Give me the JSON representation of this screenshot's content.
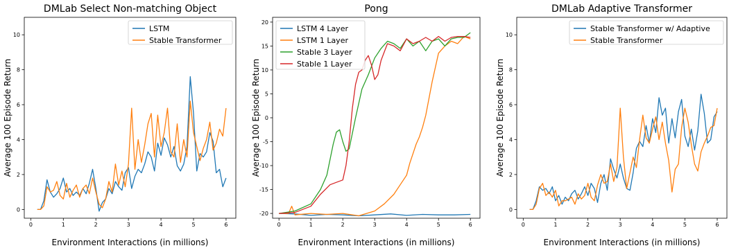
{
  "chart_data": [
    {
      "type": "line",
      "title": "DMLab Select Non-matching Object",
      "xlabel": "Environment Interactions (in millions)",
      "ylabel": "Average 100 Episode Return",
      "xlim": [
        -0.2,
        6.3
      ],
      "ylim": [
        -0.5,
        11
      ],
      "xticks": [
        0,
        1,
        2,
        3,
        4,
        5,
        6
      ],
      "yticks": [
        0,
        2,
        4,
        6,
        8,
        10
      ],
      "legend_position": "top-right",
      "grid": false,
      "series": [
        {
          "name": "LSTM",
          "color": "#1f77b4",
          "x": [
            0.2,
            0.3,
            0.4,
            0.5,
            0.6,
            0.7,
            0.8,
            0.9,
            1.0,
            1.1,
            1.2,
            1.3,
            1.4,
            1.5,
            1.6,
            1.7,
            1.8,
            1.9,
            2.0,
            2.1,
            2.2,
            2.3,
            2.4,
            2.5,
            2.6,
            2.7,
            2.8,
            2.9,
            3.0,
            3.1,
            3.2,
            3.3,
            3.4,
            3.5,
            3.6,
            3.7,
            3.8,
            3.9,
            4.0,
            4.1,
            4.2,
            4.3,
            4.4,
            4.5,
            4.6,
            4.7,
            4.8,
            4.9,
            5.0,
            5.1,
            5.2,
            5.3,
            5.4,
            5.5,
            5.6,
            5.7,
            5.8,
            5.9,
            6.0
          ],
          "y": [
            0,
            0,
            0.5,
            1.7,
            1.0,
            0.7,
            0.9,
            1.2,
            1.8,
            1.0,
            1.2,
            0.8,
            1.0,
            0.8,
            1.2,
            0.9,
            1.5,
            2.3,
            1.2,
            -0.1,
            0.4,
            0.6,
            1.2,
            0.9,
            1.6,
            1.3,
            1.1,
            2.1,
            2.4,
            1.2,
            1.9,
            2.3,
            2.1,
            2.6,
            3.3,
            3.0,
            2.2,
            3.8,
            3.1,
            4.1,
            3.7,
            3.0,
            3.6,
            2.5,
            2.2,
            2.6,
            3.6,
            7.6,
            5.5,
            2.2,
            3.2,
            3.0,
            3.3,
            4.4,
            3.9,
            2.1,
            2.3,
            1.3,
            1.8
          ]
        },
        {
          "name": "Stable Transformer",
          "color": "#ff7f0e",
          "x": [
            0.2,
            0.3,
            0.4,
            0.5,
            0.6,
            0.7,
            0.8,
            0.9,
            1.0,
            1.1,
            1.2,
            1.3,
            1.4,
            1.5,
            1.6,
            1.7,
            1.8,
            1.9,
            2.0,
            2.1,
            2.2,
            2.3,
            2.4,
            2.5,
            2.6,
            2.7,
            2.8,
            2.9,
            3.0,
            3.1,
            3.2,
            3.3,
            3.4,
            3.5,
            3.6,
            3.7,
            3.8,
            3.9,
            4.0,
            4.1,
            4.2,
            4.3,
            4.4,
            4.5,
            4.6,
            4.7,
            4.8,
            4.9,
            5.0,
            5.1,
            5.2,
            5.3,
            5.4,
            5.5,
            5.6,
            5.7,
            5.8,
            5.9,
            6.0
          ],
          "y": [
            0,
            0,
            0.2,
            1.3,
            1.0,
            1.1,
            1.6,
            0.8,
            0.6,
            1.5,
            0.7,
            1.1,
            1.4,
            0.7,
            1.2,
            1.4,
            0.9,
            1.8,
            1.0,
            0.3,
            0.1,
            0.6,
            1.6,
            1.0,
            2.6,
            1.4,
            2.2,
            1.3,
            2.6,
            5.8,
            2.3,
            4.0,
            2.7,
            3.7,
            4.9,
            5.5,
            3.0,
            5.4,
            3.6,
            4.4,
            5.8,
            3.3,
            3.0,
            4.9,
            2.7,
            4.0,
            3.0,
            6.2,
            4.4,
            3.6,
            2.8,
            3.5,
            4.0,
            5.0,
            3.4,
            3.8,
            4.6,
            4.2,
            5.8
          ]
        }
      ]
    },
    {
      "type": "line",
      "title": "Pong",
      "xlabel": "Environment Interactions (in millions)",
      "ylabel": "Average 100 Episode Return",
      "xlim": [
        -0.2,
        6.3
      ],
      "ylim": [
        -21,
        21
      ],
      "xticks": [
        0,
        1,
        2,
        3,
        4,
        5,
        6
      ],
      "yticks": [
        -20,
        -15,
        -10,
        -5,
        0,
        5,
        10,
        15,
        20
      ],
      "legend_position": "top-left",
      "grid": false,
      "series": [
        {
          "name": "LSTM 4 Layer",
          "color": "#1f77b4",
          "x": [
            0,
            0.5,
            1.0,
            1.5,
            2.0,
            2.5,
            3.0,
            3.5,
            4.0,
            4.5,
            5.0,
            5.5,
            6.0
          ],
          "y": [
            -20,
            -20.1,
            -20.4,
            -20.2,
            -20.3,
            -20.5,
            -20.3,
            -20.1,
            -20.4,
            -20.2,
            -20.3,
            -20.3,
            -20.2
          ]
        },
        {
          "name": "LSTM 1 Layer",
          "color": "#ff7f0e",
          "x": [
            0,
            0.3,
            0.4,
            0.5,
            1.0,
            1.5,
            2.0,
            2.5,
            3.0,
            3.3,
            3.6,
            3.8,
            4.0,
            4.1,
            4.2,
            4.3,
            4.4,
            4.5,
            4.6,
            4.7,
            4.8,
            4.9,
            5.0,
            5.2,
            5.4,
            5.6,
            5.8,
            6.0
          ],
          "y": [
            -20,
            -20,
            -18.5,
            -20.3,
            -20.0,
            -20.2,
            -20.0,
            -20.5,
            -19.5,
            -18.0,
            -16.0,
            -14.0,
            -12.0,
            -9.5,
            -7.5,
            -5.5,
            -4.0,
            -2.0,
            0.5,
            4.0,
            7.5,
            10.5,
            13.5,
            15.0,
            16.0,
            15.5,
            17.0,
            16.5
          ]
        },
        {
          "name": "Stable 3 Layer",
          "color": "#2ca02c",
          "x": [
            0,
            0.5,
            1.0,
            1.3,
            1.5,
            1.7,
            1.8,
            1.9,
            2.0,
            2.1,
            2.2,
            2.4,
            2.6,
            2.8,
            3.0,
            3.2,
            3.4,
            3.6,
            3.8,
            4.0,
            4.2,
            4.4,
            4.6,
            4.8,
            5.0,
            5.2,
            5.4,
            5.6,
            5.8,
            6.0
          ],
          "y": [
            -20,
            -19.5,
            -18.0,
            -15.0,
            -12.0,
            -5.5,
            -3.0,
            -2.5,
            -5.0,
            -7.0,
            -6.5,
            0.0,
            6.0,
            9.0,
            12.5,
            14.5,
            16.0,
            15.5,
            14.5,
            16.5,
            15.0,
            16.0,
            14.0,
            16.0,
            16.5,
            15.0,
            16.5,
            16.8,
            16.8,
            17.8
          ]
        },
        {
          "name": "Stable 1 Layer",
          "color": "#d62728",
          "x": [
            0,
            0.5,
            1.0,
            1.3,
            1.6,
            1.8,
            2.0,
            2.1,
            2.2,
            2.3,
            2.4,
            2.5,
            2.6,
            2.7,
            2.8,
            2.9,
            3.0,
            3.1,
            3.2,
            3.4,
            3.6,
            3.8,
            4.0,
            4.2,
            4.4,
            4.6,
            4.8,
            5.0,
            5.2,
            5.4,
            5.6,
            5.8,
            6.0
          ],
          "y": [
            -20,
            -19.8,
            -18.5,
            -16.0,
            -14.0,
            -13.5,
            -13.0,
            -10.0,
            -5.0,
            2.0,
            7.0,
            9.5,
            10.0,
            12.0,
            13.0,
            11.0,
            8.0,
            9.0,
            12.0,
            15.5,
            15.0,
            14.0,
            16.5,
            15.5,
            16.0,
            16.8,
            16.0,
            17.0,
            16.0,
            16.8,
            17.0,
            17.0,
            16.8
          ]
        }
      ]
    },
    {
      "type": "line",
      "title": "DMLab Adaptive Transformer",
      "xlabel": "Environment Interactions (in millions)",
      "ylabel": "Average 100 Episode Return",
      "xlim": [
        -0.2,
        6.3
      ],
      "ylim": [
        -0.5,
        11
      ],
      "xticks": [
        0,
        1,
        2,
        3,
        4,
        5,
        6
      ],
      "yticks": [
        0,
        2,
        4,
        6,
        8,
        10
      ],
      "legend_position": "top-right",
      "grid": false,
      "series": [
        {
          "name": "Stable Transformer w/ Adaptive",
          "color": "#1f77b4",
          "x": [
            0.2,
            0.3,
            0.4,
            0.5,
            0.6,
            0.7,
            0.8,
            0.9,
            1.0,
            1.1,
            1.2,
            1.3,
            1.4,
            1.5,
            1.6,
            1.7,
            1.8,
            1.9,
            2.0,
            2.1,
            2.2,
            2.3,
            2.4,
            2.5,
            2.6,
            2.7,
            2.8,
            2.9,
            3.0,
            3.1,
            3.2,
            3.3,
            3.4,
            3.5,
            3.6,
            3.7,
            3.8,
            3.9,
            4.0,
            4.1,
            4.2,
            4.3,
            4.4,
            4.5,
            4.6,
            4.7,
            4.8,
            4.9,
            5.0,
            5.1,
            5.2,
            5.3,
            5.4,
            5.5,
            5.6,
            5.7,
            5.8,
            5.9,
            6.0
          ],
          "y": [
            0,
            0,
            0.5,
            1.3,
            1.1,
            1.2,
            0.9,
            1.3,
            0.5,
            0.8,
            0.3,
            0.7,
            0.5,
            0.9,
            1.1,
            0.6,
            0.9,
            1.3,
            0.8,
            1.5,
            1.2,
            0.4,
            1.5,
            2.0,
            1.1,
            2.9,
            2.3,
            1.8,
            2.6,
            1.8,
            1.2,
            1.1,
            2.1,
            3.5,
            3.9,
            3.6,
            4.8,
            3.8,
            5.2,
            4.4,
            6.4,
            5.4,
            5.8,
            3.8,
            5.2,
            4.1,
            5.6,
            6.3,
            4.2,
            3.6,
            4.6,
            3.4,
            4.5,
            6.6,
            5.5,
            3.8,
            4.0,
            5.3,
            5.6
          ]
        },
        {
          "name": "Stable Transformer",
          "color": "#ff7f0e",
          "x": [
            0.2,
            0.3,
            0.4,
            0.5,
            0.6,
            0.7,
            0.8,
            0.9,
            1.0,
            1.1,
            1.2,
            1.3,
            1.4,
            1.5,
            1.6,
            1.7,
            1.8,
            1.9,
            2.0,
            2.1,
            2.2,
            2.3,
            2.4,
            2.5,
            2.6,
            2.7,
            2.8,
            2.9,
            3.0,
            3.1,
            3.2,
            3.3,
            3.4,
            3.5,
            3.6,
            3.7,
            3.8,
            3.9,
            4.0,
            4.1,
            4.2,
            4.3,
            4.4,
            4.5,
            4.6,
            4.7,
            4.8,
            4.9,
            5.0,
            5.1,
            5.2,
            5.3,
            5.4,
            5.5,
            5.6,
            5.7,
            5.8,
            5.9,
            6.0
          ],
          "y": [
            0,
            0,
            0.3,
            1.2,
            1.5,
            0.8,
            1.0,
            0.7,
            1.1,
            0.2,
            0.5,
            0.5,
            0.6,
            0.7,
            0.3,
            0.9,
            0.6,
            0.8,
            1.5,
            0.7,
            0.5,
            1.4,
            2.0,
            1.5,
            1.6,
            2.6,
            1.6,
            2.4,
            5.8,
            3.0,
            1.2,
            2.1,
            3.0,
            2.4,
            4.0,
            5.4,
            4.1,
            3.8,
            4.6,
            5.3,
            4.0,
            5.0,
            3.8,
            2.8,
            1.0,
            2.3,
            2.6,
            4.7,
            5.8,
            5.0,
            3.7,
            2.6,
            2.2,
            3.3,
            3.8,
            4.2,
            4.7,
            4.8,
            5.8
          ]
        }
      ]
    }
  ]
}
